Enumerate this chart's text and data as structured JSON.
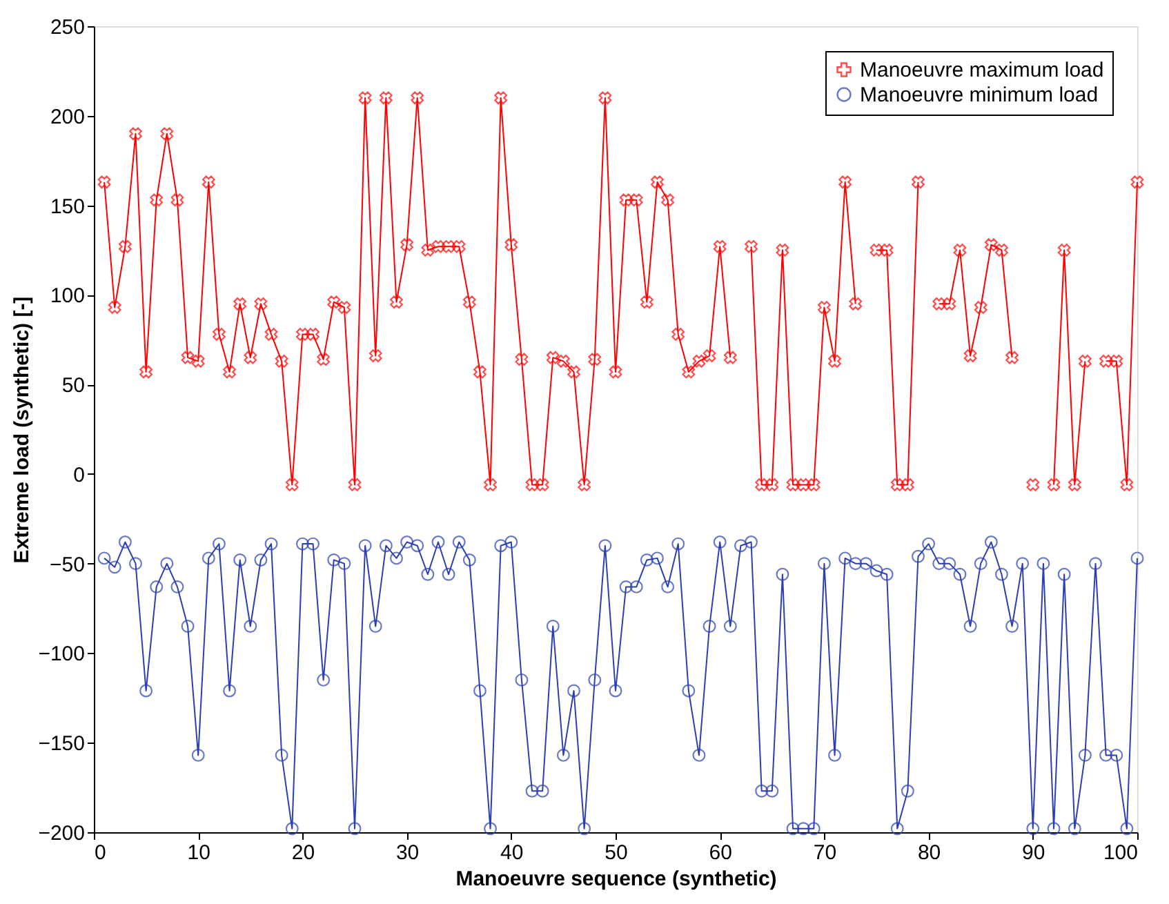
{
  "chart_data": {
    "type": "line",
    "xlabel": "Manoeuvre sequence (synthetic)",
    "ylabel": "Extreme load (synthetic) [-]",
    "x": [
      1,
      2,
      3,
      4,
      5,
      6,
      7,
      8,
      9,
      10,
      11,
      12,
      13,
      14,
      15,
      16,
      17,
      18,
      19,
      20,
      21,
      22,
      23,
      24,
      25,
      26,
      27,
      28,
      29,
      30,
      31,
      32,
      33,
      34,
      35,
      36,
      37,
      38,
      39,
      40,
      41,
      42,
      43,
      44,
      45,
      46,
      47,
      48,
      49,
      50,
      51,
      52,
      53,
      54,
      55,
      56,
      57,
      58,
      59,
      60,
      61,
      62,
      63,
      64,
      65,
      66,
      67,
      68,
      69,
      70,
      71,
      72,
      73,
      74,
      75,
      76,
      77,
      78,
      79,
      80,
      81,
      82,
      83,
      84,
      85,
      86,
      87,
      88,
      89,
      90,
      91,
      92,
      93,
      94,
      95,
      96,
      97,
      98,
      99,
      100
    ],
    "series": [
      {
        "name": "Manoeuvre maximum load",
        "color": "#ff0000",
        "marker": "cross",
        "values": [
          163,
          93,
          127,
          190,
          57,
          153,
          190,
          153,
          65,
          63,
          163,
          78,
          57,
          95,
          65,
          95,
          78,
          63,
          -6,
          78,
          78,
          64,
          96,
          93,
          -6,
          210,
          66,
          210,
          96,
          128,
          210,
          125,
          127,
          127,
          127,
          96,
          57,
          -6,
          210,
          128,
          64,
          -6,
          -6,
          65,
          63,
          57,
          -6,
          64,
          210,
          57,
          153,
          153,
          96,
          163,
          153,
          78,
          57,
          63,
          66,
          127,
          65,
          null,
          127,
          -6,
          -6,
          125,
          -6,
          -6,
          -6,
          93,
          63,
          163,
          95,
          null,
          125,
          125,
          -6,
          -6,
          163,
          null,
          95,
          95,
          125,
          66,
          93,
          128,
          125,
          65,
          null,
          -6,
          null,
          -6,
          125,
          -6,
          63,
          null,
          63,
          63,
          -6,
          163
        ]
      },
      {
        "name": "Manoeuvre minimum load",
        "color": "#2b3fb0",
        "marker": "circle",
        "values": [
          -47,
          -52,
          -38,
          -50,
          -121,
          -63,
          -50,
          -63,
          -85,
          -157,
          -47,
          -39,
          -121,
          -48,
          -85,
          -48,
          -39,
          -157,
          -198,
          -39,
          -39,
          -115,
          -48,
          -50,
          -198,
          -40,
          -85,
          -40,
          -47,
          -38,
          -40,
          -56,
          -38,
          -56,
          -38,
          -48,
          -121,
          -198,
          -40,
          -38,
          -115,
          -177,
          -177,
          -85,
          -157,
          -121,
          -198,
          -115,
          -40,
          -121,
          -63,
          -63,
          -48,
          -47,
          -63,
          -39,
          -121,
          -157,
          -85,
          -38,
          -85,
          -40,
          -38,
          -177,
          -177,
          -56,
          -198,
          -198,
          -198,
          -50,
          -157,
          -47,
          -50,
          -50,
          -54,
          -56,
          -198,
          -177,
          -46,
          -39,
          -50,
          -50,
          -56,
          -85,
          -50,
          -38,
          -56,
          -85,
          -50,
          -198,
          -50,
          -198,
          -56,
          -198,
          -157,
          -50,
          -157,
          -157,
          -198,
          -47
        ]
      }
    ],
    "xlim": [
      0,
      100
    ],
    "xticks": [
      0,
      10,
      20,
      30,
      40,
      50,
      60,
      70,
      80,
      90,
      100
    ],
    "ylim": [
      -200,
      250
    ],
    "yticks": [
      -200,
      -150,
      -100,
      -50,
      0,
      50,
      100,
      150,
      200,
      250
    ],
    "grid": false,
    "legend": "top right"
  }
}
